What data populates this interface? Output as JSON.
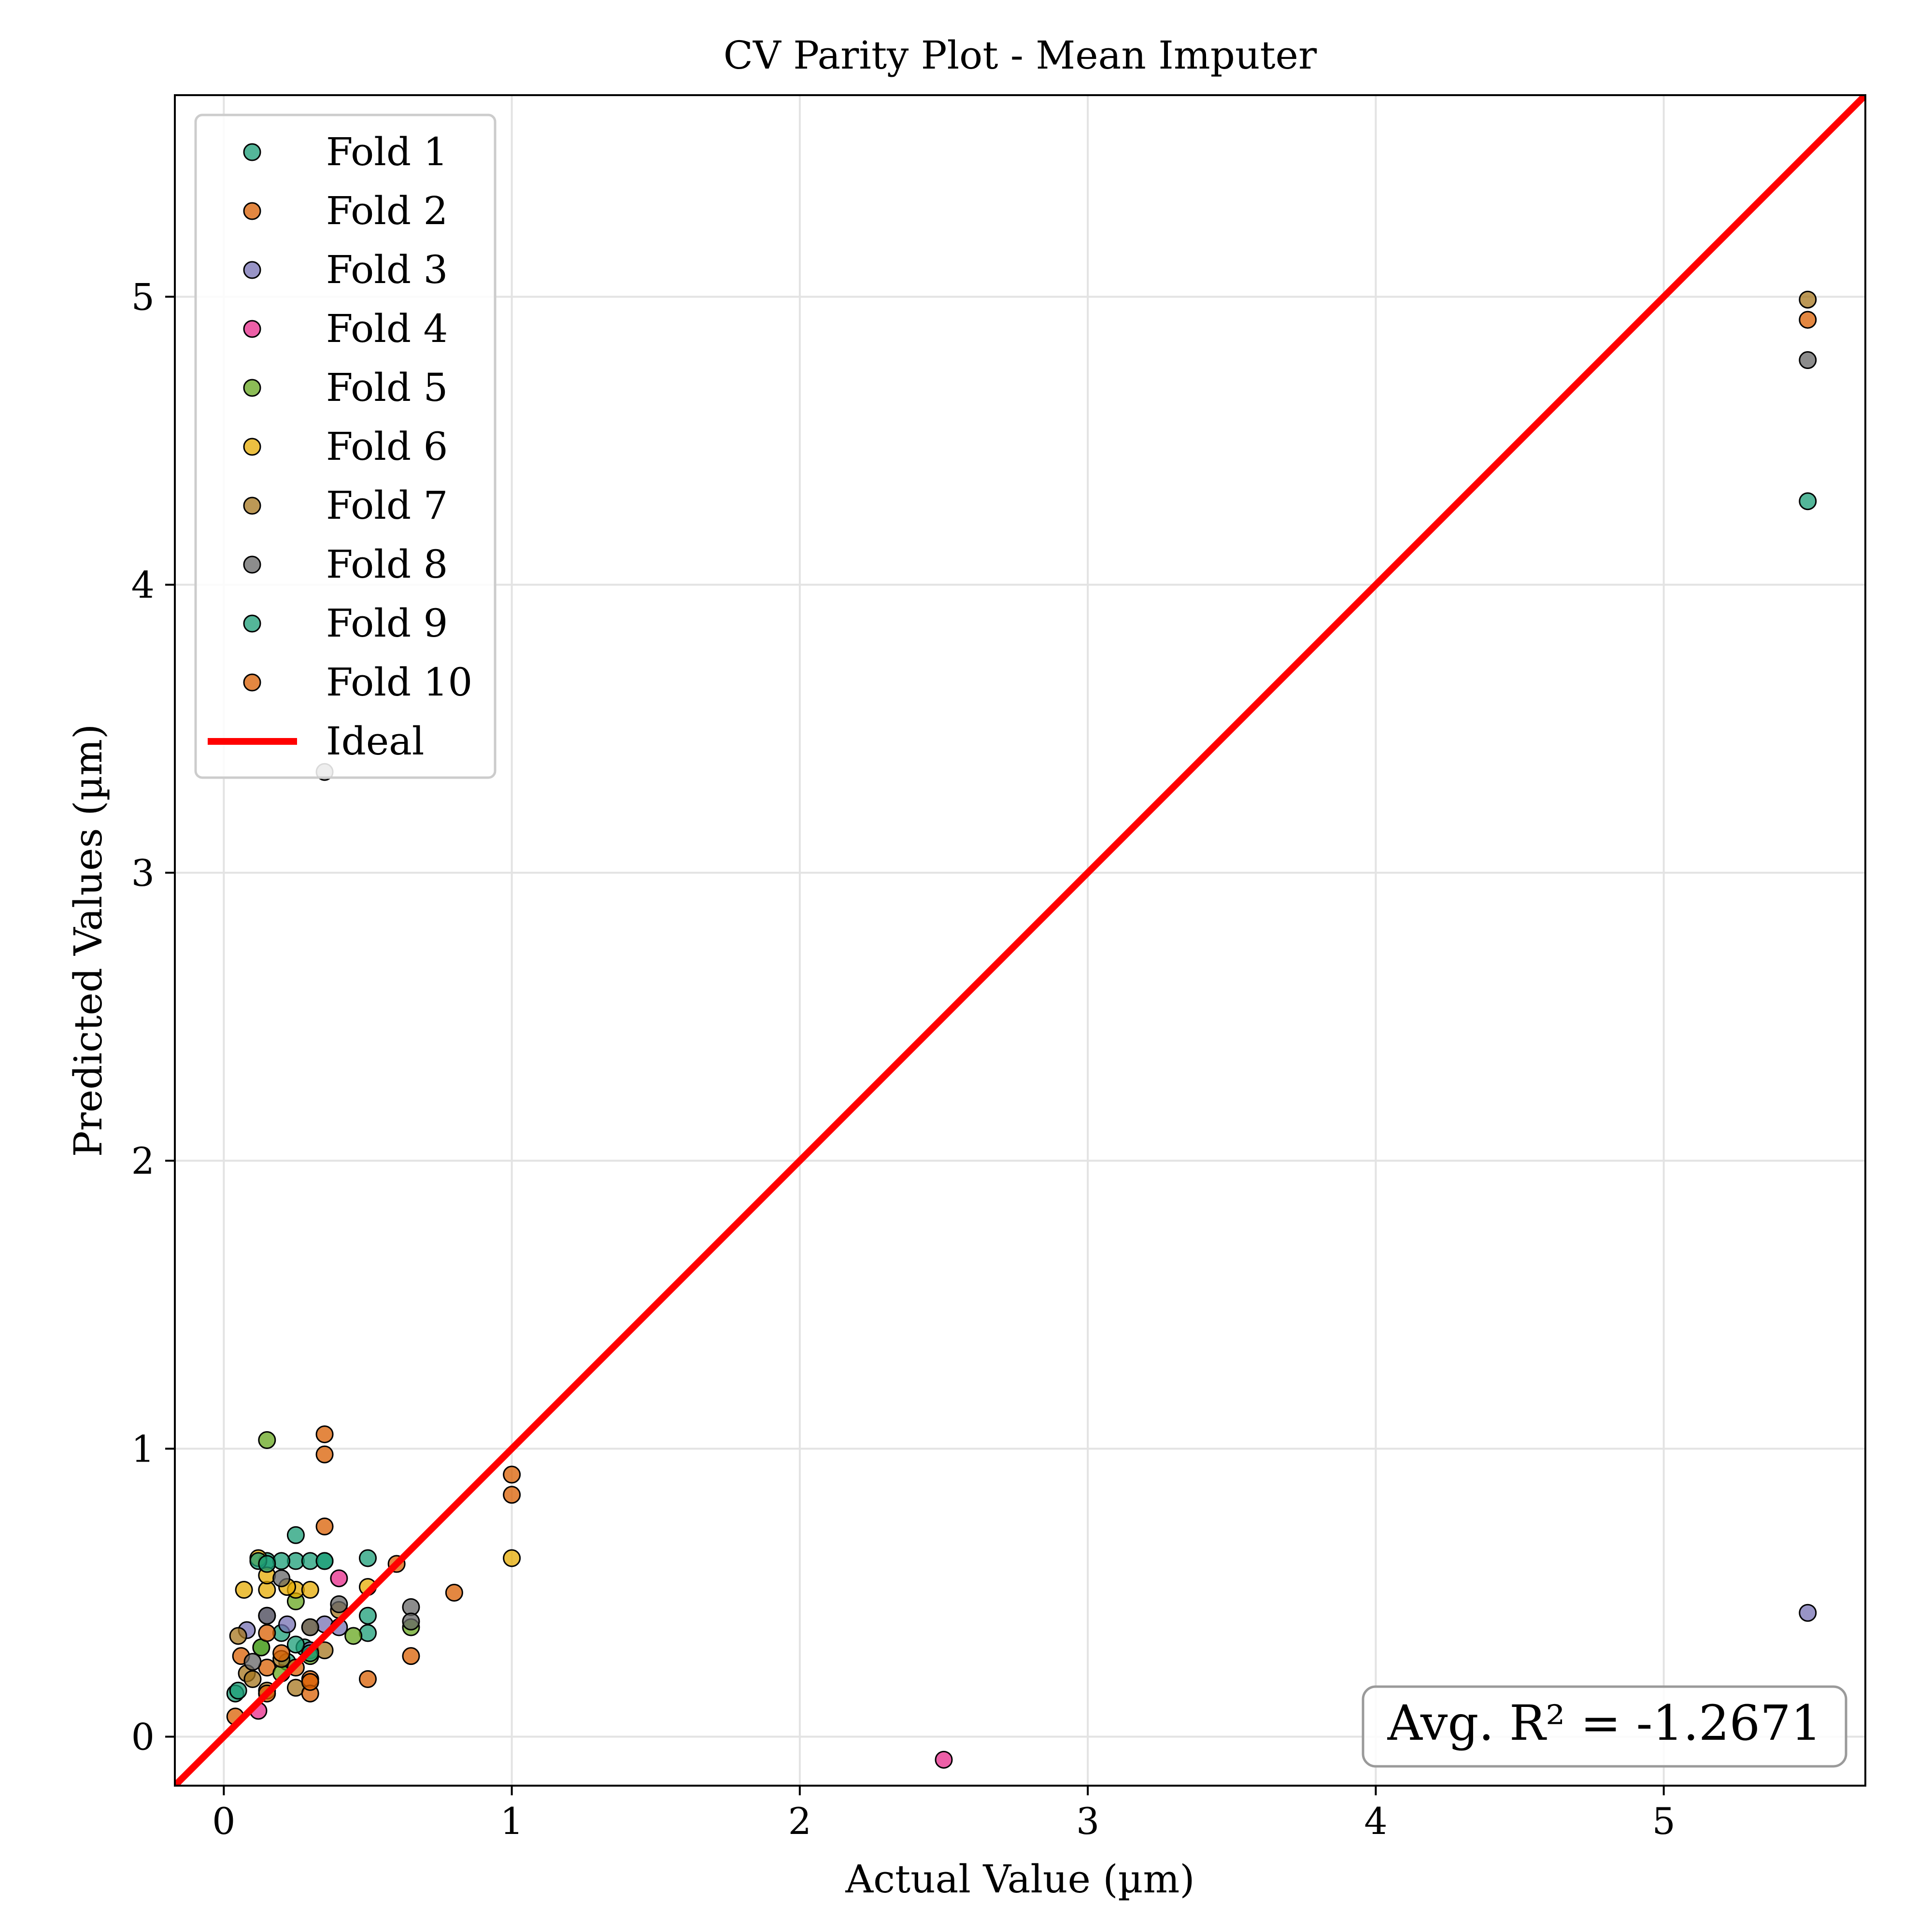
{
  "chart_data": {
    "type": "scatter",
    "title": "CV Parity Plot - Mean Imputer",
    "xlabel": "Actual Value (µm)",
    "ylabel": "Predicted Values (µm)",
    "xlim": [
      -0.17,
      5.7
    ],
    "ylim": [
      -0.17,
      5.7
    ],
    "xticks": [
      0,
      1,
      2,
      3,
      4,
      5
    ],
    "yticks": [
      0,
      1,
      2,
      3,
      4,
      5
    ],
    "grid": true,
    "legend_position": "top-left",
    "annotation": "Avg. R² = -1.2671",
    "ideal_line": {
      "label": "Ideal",
      "color": "#ff0000",
      "points": [
        [
          -0.17,
          -0.17
        ],
        [
          5.7,
          5.7
        ]
      ]
    },
    "series": [
      {
        "name": "Fold 1",
        "color": "#1b9e77",
        "points": [
          [
            0.04,
            0.15
          ],
          [
            0.13,
            0.31
          ],
          [
            0.15,
            0.61
          ],
          [
            0.2,
            0.36
          ],
          [
            0.22,
            0.26
          ],
          [
            0.25,
            0.7
          ],
          [
            0.25,
            0.61
          ],
          [
            0.3,
            0.61
          ],
          [
            0.35,
            0.61
          ],
          [
            0.5,
            0.62
          ],
          [
            0.5,
            0.36
          ],
          [
            0.28,
            0.31
          ]
        ]
      },
      {
        "name": "Fold 2",
        "color": "#d95f02",
        "points": [
          [
            0.06,
            0.28
          ],
          [
            0.15,
            0.24
          ],
          [
            0.3,
            0.2
          ],
          [
            0.35,
            1.05
          ],
          [
            0.35,
            0.98
          ],
          [
            0.35,
            0.73
          ],
          [
            0.5,
            0.2
          ],
          [
            0.6,
            0.6
          ],
          [
            0.65,
            0.28
          ],
          [
            0.8,
            0.5
          ],
          [
            1.0,
            0.91
          ],
          [
            1.0,
            0.84
          ],
          [
            5.5,
            4.92
          ]
        ]
      },
      {
        "name": "Fold 3",
        "color": "#7570b3",
        "points": [
          [
            0.08,
            0.37
          ],
          [
            0.15,
            0.42
          ],
          [
            0.22,
            0.39
          ],
          [
            0.35,
            0.39
          ],
          [
            0.4,
            0.38
          ],
          [
            0.3,
            0.3
          ],
          [
            5.5,
            0.43
          ]
        ]
      },
      {
        "name": "Fold 4",
        "color": "#e7298a",
        "points": [
          [
            0.12,
            0.09
          ],
          [
            0.4,
            0.55
          ],
          [
            2.5,
            -0.08
          ]
        ]
      },
      {
        "name": "Fold 5",
        "color": "#66a61e",
        "points": [
          [
            0.15,
            1.03
          ],
          [
            0.13,
            0.31
          ],
          [
            0.25,
            0.47
          ],
          [
            0.45,
            0.35
          ],
          [
            0.65,
            0.38
          ],
          [
            0.2,
            0.22
          ],
          [
            0.3,
            0.28
          ]
        ]
      },
      {
        "name": "Fold 6",
        "color": "#e6ab02",
        "points": [
          [
            0.07,
            0.51
          ],
          [
            0.12,
            0.62
          ],
          [
            0.15,
            0.51
          ],
          [
            0.15,
            0.56
          ],
          [
            0.25,
            0.51
          ],
          [
            0.3,
            0.51
          ],
          [
            0.5,
            0.52
          ],
          [
            1.0,
            0.62
          ],
          [
            0.22,
            0.52
          ]
        ]
      },
      {
        "name": "Fold 7",
        "color": "#a6761d",
        "points": [
          [
            0.05,
            0.35
          ],
          [
            0.08,
            0.22
          ],
          [
            0.1,
            0.2
          ],
          [
            0.15,
            0.16
          ],
          [
            0.2,
            0.27
          ],
          [
            0.25,
            0.17
          ],
          [
            0.3,
            0.38
          ],
          [
            0.35,
            0.3
          ],
          [
            0.4,
            0.44
          ],
          [
            5.5,
            4.99
          ]
        ]
      },
      {
        "name": "Fold 8",
        "color": "#666666",
        "points": [
          [
            0.1,
            0.26
          ],
          [
            0.15,
            0.42
          ],
          [
            0.2,
            0.55
          ],
          [
            0.3,
            0.38
          ],
          [
            0.35,
            3.35
          ],
          [
            0.4,
            0.46
          ],
          [
            0.65,
            0.45
          ],
          [
            0.65,
            0.4
          ],
          [
            5.5,
            4.78
          ]
        ]
      },
      {
        "name": "Fold 9",
        "color": "#1b9e77",
        "points": [
          [
            0.05,
            0.16
          ],
          [
            0.12,
            0.61
          ],
          [
            0.2,
            0.61
          ],
          [
            0.25,
            0.32
          ],
          [
            0.3,
            0.29
          ],
          [
            0.35,
            0.61
          ],
          [
            0.5,
            0.42
          ],
          [
            5.5,
            4.29
          ],
          [
            0.15,
            0.6
          ]
        ]
      },
      {
        "name": "Fold 10",
        "color": "#d95f02",
        "points": [
          [
            0.04,
            0.07
          ],
          [
            0.15,
            0.15
          ],
          [
            0.25,
            0.24
          ],
          [
            0.3,
            0.15
          ],
          [
            0.3,
            0.19
          ],
          [
            0.15,
            0.36
          ],
          [
            0.2,
            0.29
          ]
        ]
      }
    ]
  }
}
